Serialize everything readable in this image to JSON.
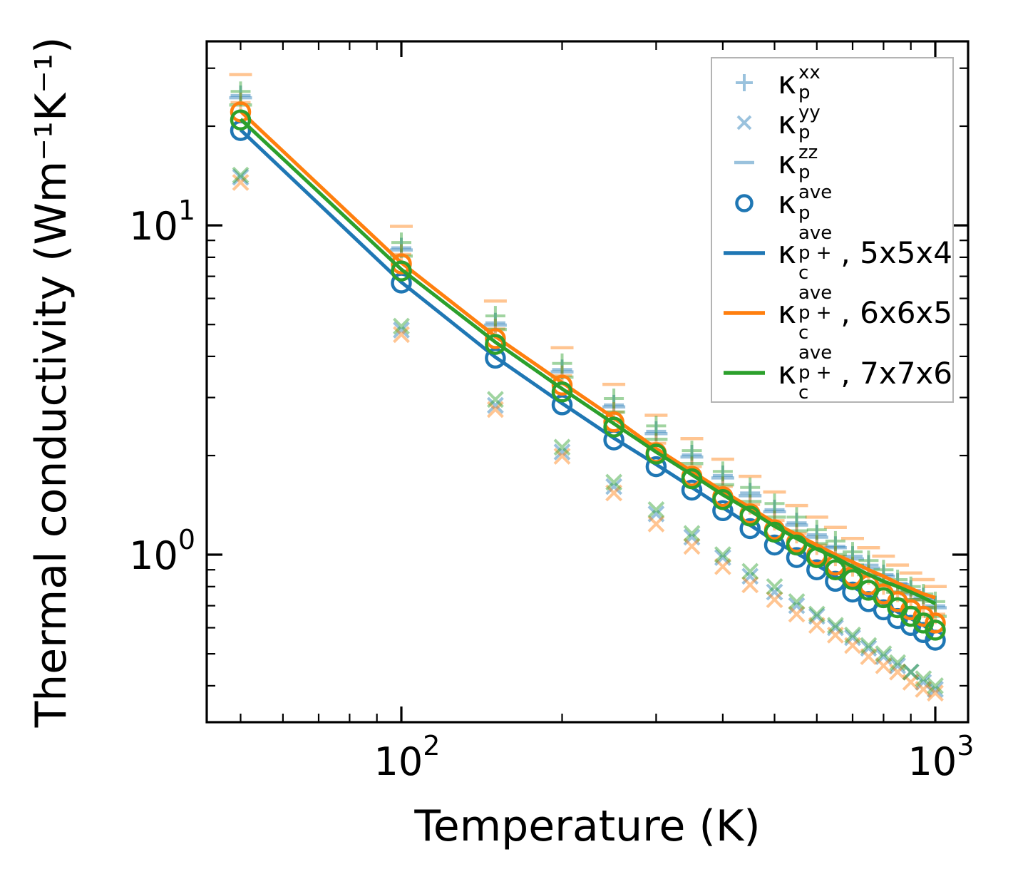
{
  "figure": {
    "background": "#ffffff"
  },
  "axes": {
    "xlabel": "Temperature (K)",
    "ylabel": "Thermal conductivity (Wm⁻¹K⁻¹)",
    "x_scale": "log",
    "y_scale": "log",
    "x_range": [
      43.2,
      1152
    ],
    "y_range": [
      0.31,
      36.2
    ],
    "x_major_ticks": [
      {
        "value": 100,
        "base": "10",
        "exp": "2"
      },
      {
        "value": 1000,
        "base": "10",
        "exp": "3"
      }
    ],
    "x_minor_ticks": [
      50,
      60,
      70,
      80,
      90,
      200,
      300,
      400,
      500,
      600,
      700,
      800,
      900
    ],
    "y_major_ticks": [
      {
        "value": 10,
        "base": "10",
        "exp": "1"
      },
      {
        "value": 1,
        "base": "10",
        "exp": "0"
      }
    ],
    "y_minor_ticks": [
      30,
      20,
      9,
      8,
      7,
      6,
      5,
      4,
      3,
      2,
      0.9,
      0.8,
      0.7,
      0.6,
      0.5,
      0.4
    ]
  },
  "colors": {
    "blue": "#1f77b4",
    "orange": "#ff7f0e",
    "green": "#2ca02c",
    "light_alpha": 0.45,
    "legend_border": "#b3b3b3",
    "axis": "#000000"
  },
  "legend": {
    "entries": [
      {
        "marker": "plus",
        "color": "blue",
        "alpha": true,
        "kappa": "κ",
        "sup": "xx",
        "sub": "p",
        "suffix": ""
      },
      {
        "marker": "x",
        "color": "blue",
        "alpha": true,
        "kappa": "κ",
        "sup": "yy",
        "sub": "p",
        "suffix": ""
      },
      {
        "marker": "dash",
        "color": "blue",
        "alpha": true,
        "kappa": "κ",
        "sup": "zz",
        "sub": "p",
        "suffix": ""
      },
      {
        "marker": "circle",
        "color": "blue",
        "alpha": false,
        "kappa": "κ",
        "sup": "ave",
        "sub": "p",
        "suffix": ""
      },
      {
        "marker": "line",
        "color": "blue",
        "alpha": false,
        "kappa": "κ",
        "sup": "ave",
        "sub": "p + c",
        "suffix": ", 5x5x4"
      },
      {
        "marker": "line",
        "color": "orange",
        "alpha": false,
        "kappa": "κ",
        "sup": "ave",
        "sub": "p + c",
        "suffix": ", 6x6x5"
      },
      {
        "marker": "line",
        "color": "green",
        "alpha": false,
        "kappa": "κ",
        "sup": "ave",
        "sub": "p + c",
        "suffix": ", 7x7x6"
      }
    ]
  },
  "chart_data": {
    "type": "line+scatter",
    "title": "",
    "xlabel": "Temperature (K)",
    "ylabel": "Thermal conductivity (Wm-1K-1)",
    "x_axis": {
      "scale": "log",
      "range": [
        43.2,
        1152
      ],
      "unit": "K"
    },
    "y_axis": {
      "scale": "log",
      "range": [
        0.31,
        36.2
      ],
      "unit": "W m-1 K-1"
    },
    "legend_position": "upper right",
    "grid": false,
    "x": [
      50,
      100,
      150,
      200,
      250,
      300,
      350,
      400,
      450,
      500,
      550,
      600,
      650,
      700,
      750,
      800,
      850,
      900,
      950,
      1000
    ],
    "series": [
      {
        "name": "kappa_p_xx_5x5x4",
        "marker": "plus",
        "color": "blue",
        "alpha": true,
        "values": [
          24.8,
          8.55,
          5.06,
          3.65,
          2.85,
          2.37,
          2.01,
          1.74,
          1.54,
          1.37,
          1.25,
          1.15,
          1.06,
          0.99,
          0.93,
          0.87,
          0.82,
          0.78,
          0.74,
          0.7
        ]
      },
      {
        "name": "kappa_p_yy_5x5x4",
        "marker": "x",
        "color": "blue",
        "alpha": true,
        "values": [
          14.0,
          4.81,
          2.84,
          2.05,
          1.61,
          1.33,
          1.13,
          0.98,
          0.86,
          0.77,
          0.7,
          0.65,
          0.6,
          0.56,
          0.52,
          0.49,
          0.46,
          0.44,
          0.41,
          0.39
        ]
      },
      {
        "name": "kappa_p_zz_5x5x4",
        "marker": "dash",
        "color": "blue",
        "alpha": true,
        "values": [
          24.4,
          8.42,
          4.98,
          3.59,
          2.81,
          2.33,
          1.98,
          1.71,
          1.51,
          1.35,
          1.23,
          1.13,
          1.05,
          0.97,
          0.91,
          0.86,
          0.81,
          0.76,
          0.73,
          0.69
        ]
      },
      {
        "name": "kappa_p_xx_6x6x5",
        "marker": "plus",
        "color": "orange",
        "alpha": true,
        "values": [
          23.6,
          8.17,
          4.85,
          3.5,
          2.71,
          2.18,
          1.85,
          1.61,
          1.42,
          1.27,
          1.16,
          1.07,
          0.99,
          0.92,
          0.87,
          0.81,
          0.77,
          0.73,
          0.69,
          0.66
        ]
      },
      {
        "name": "kappa_p_yy_6x6x5",
        "marker": "x",
        "color": "orange",
        "alpha": true,
        "values": [
          13.5,
          4.66,
          2.76,
          1.99,
          1.54,
          1.24,
          1.06,
          0.92,
          0.81,
          0.73,
          0.66,
          0.61,
          0.57,
          0.53,
          0.49,
          0.46,
          0.44,
          0.41,
          0.39,
          0.38
        ]
      },
      {
        "name": "kappa_p_zz_6x6x5",
        "marker": "dash",
        "color": "orange",
        "alpha": true,
        "values": [
          28.7,
          9.93,
          5.89,
          4.25,
          3.29,
          2.65,
          2.25,
          1.95,
          1.73,
          1.55,
          1.41,
          1.3,
          1.21,
          1.12,
          1.05,
          0.99,
          0.93,
          0.88,
          0.84,
          0.8
        ]
      },
      {
        "name": "kappa_p_xx_7x7x6",
        "marker": "plus",
        "color": "green",
        "alpha": true,
        "values": [
          25.5,
          8.87,
          5.31,
          3.81,
          2.98,
          2.46,
          2.07,
          1.79,
          1.6,
          1.43,
          1.3,
          1.19,
          1.1,
          1.02,
          0.96,
          0.9,
          0.84,
          0.8,
          0.76,
          0.72
        ]
      },
      {
        "name": "kappa_p_yy_7x7x6",
        "marker": "x",
        "color": "green",
        "alpha": true,
        "values": [
          14.2,
          4.94,
          2.96,
          2.12,
          1.66,
          1.37,
          1.16,
          1.0,
          0.89,
          0.8,
          0.72,
          0.66,
          0.61,
          0.57,
          0.53,
          0.5,
          0.47,
          0.44,
          0.42,
          0.4
        ]
      },
      {
        "name": "kappa_p_zz_7x7x6",
        "marker": "dash",
        "color": "green",
        "alpha": true,
        "values": [
          23.2,
          8.07,
          4.83,
          3.46,
          2.71,
          2.24,
          1.89,
          1.63,
          1.45,
          1.3,
          1.18,
          1.08,
          1.0,
          0.93,
          0.87,
          0.82,
          0.77,
          0.73,
          0.69,
          0.65
        ]
      },
      {
        "name": "kappa_pc_ave_5x5x4_line",
        "marker": "line",
        "color": "blue",
        "alpha": false,
        "values": [
          19.5,
          6.72,
          3.98,
          2.88,
          2.26,
          1.88,
          1.6,
          1.39,
          1.23,
          1.1,
          1.01,
          0.93,
          0.86,
          0.8,
          0.75,
          0.71,
          0.67,
          0.64,
          0.61,
          0.58
        ]
      },
      {
        "name": "kappa_p_ave_5x5x4",
        "marker": "circle",
        "color": "blue",
        "alpha": false,
        "values": [
          19.4,
          6.68,
          3.95,
          2.85,
          2.23,
          1.85,
          1.57,
          1.36,
          1.2,
          1.07,
          0.98,
          0.9,
          0.83,
          0.77,
          0.72,
          0.68,
          0.64,
          0.61,
          0.58,
          0.55
        ]
      },
      {
        "name": "kappa_pc_ave_6x6x5_line",
        "marker": "line",
        "color": "orange",
        "alpha": false,
        "values": [
          22.2,
          7.7,
          4.6,
          3.33,
          2.6,
          2.1,
          1.79,
          1.56,
          1.39,
          1.25,
          1.15,
          1.07,
          1.0,
          0.95,
          0.9,
          0.86,
          0.82,
          0.79,
          0.76,
          0.74
        ]
      },
      {
        "name": "kappa_p_ave_6x6x5",
        "marker": "circle",
        "color": "orange",
        "alpha": false,
        "values": [
          22.1,
          7.64,
          4.53,
          3.27,
          2.53,
          2.04,
          1.73,
          1.5,
          1.33,
          1.19,
          1.09,
          1.0,
          0.93,
          0.86,
          0.81,
          0.76,
          0.72,
          0.68,
          0.65,
          0.62
        ]
      },
      {
        "name": "kappa_pc_ave_7x7x6_line",
        "marker": "line",
        "color": "green",
        "alpha": false,
        "values": [
          21.0,
          7.35,
          4.42,
          3.19,
          2.5,
          2.05,
          1.75,
          1.52,
          1.36,
          1.22,
          1.12,
          1.04,
          0.98,
          0.92,
          0.87,
          0.83,
          0.8,
          0.77,
          0.74,
          0.71
        ]
      },
      {
        "name": "kappa_p_ave_7x7x6",
        "marker": "circle",
        "color": "green",
        "alpha": false,
        "values": [
          20.9,
          7.27,
          4.35,
          3.12,
          2.44,
          2.02,
          1.7,
          1.47,
          1.31,
          1.17,
          1.07,
          0.98,
          0.9,
          0.84,
          0.78,
          0.74,
          0.69,
          0.65,
          0.62,
          0.59
        ]
      }
    ]
  }
}
